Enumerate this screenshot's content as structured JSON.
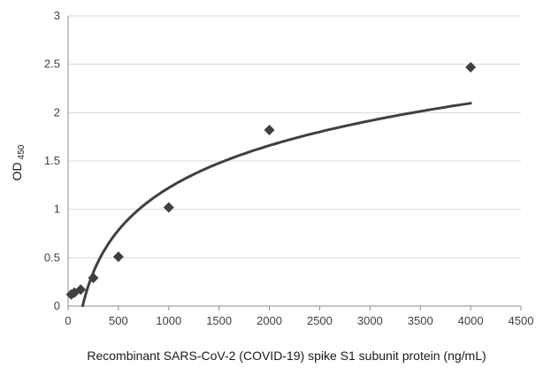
{
  "chart_data": {
    "type": "scatter",
    "xlabel": "Recombinant SARS-CoV-2 (COVID-19) spike S1 subunit protein (ng/mL)",
    "ylabel_main": "OD",
    "ylabel_sub": "450",
    "xlim": [
      0,
      4500
    ],
    "ylim": [
      0,
      3
    ],
    "xticks": [
      0,
      500,
      1000,
      1500,
      2000,
      2500,
      3000,
      3500,
      4000,
      4500
    ],
    "yticks": [
      0,
      0.5,
      1,
      1.5,
      2,
      2.5,
      3
    ],
    "ytick_labels": [
      "0",
      "0.5",
      "1",
      "1.5",
      "2",
      "2.5",
      "3"
    ],
    "grid": "horizontal",
    "marker": "diamond",
    "colors": {
      "points": "#404040",
      "curve": "#404040",
      "grid": "#d9d9d9",
      "axis": "#8c8c8c"
    },
    "series": [
      {
        "points": [
          {
            "x": 31.25,
            "y": 0.12
          },
          {
            "x": 62.5,
            "y": 0.14
          },
          {
            "x": 125,
            "y": 0.17
          },
          {
            "x": 250,
            "y": 0.29
          },
          {
            "x": 500,
            "y": 0.51
          },
          {
            "x": 1000,
            "y": 1.02
          },
          {
            "x": 2000,
            "y": 1.82
          },
          {
            "x": 4000,
            "y": 2.47
          }
        ]
      }
    ],
    "trendline": {
      "type": "logarithmic",
      "a": 0.6315,
      "b": -3.14,
      "x_start": 145,
      "x_end": 4000
    }
  }
}
